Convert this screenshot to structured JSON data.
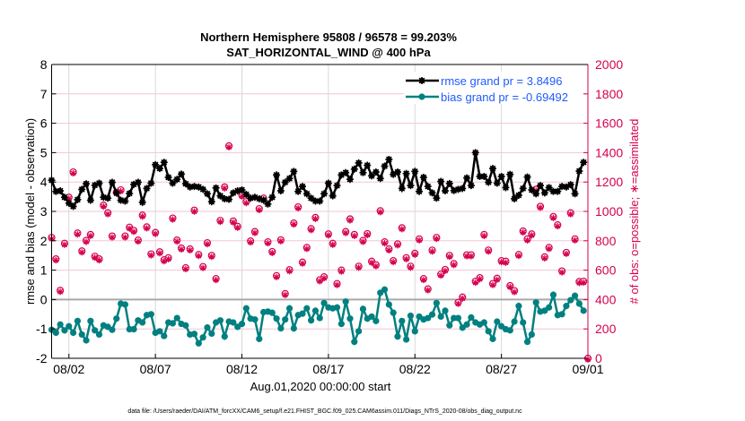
{
  "chart_data": {
    "type": "line",
    "title": [
      "Northern Hemisphere 95808 / 96578 = 99.203%",
      "SAT_HORIZONTAL_WIND @ 400 hPa"
    ],
    "xlabel": "Aug.01,2020 00:00:00 start",
    "ylabel_left": "rmse and bias (model - observation)",
    "ylabel_right": "# of obs: o=possible; ∗=assimilated",
    "footer": "data file: /Users/raeder/DAI/ATM_forcXX/CAM6_setup/f.e21.FHIST_BGC.f09_025.CAM6assim.011/Diags_NTrS_2020-08/obs_diag_output.nc",
    "ylim_left": [
      -2,
      8
    ],
    "ylim_right": [
      0,
      2000
    ],
    "xlim": [
      "08/01 00:00",
      "09/01 00:00"
    ],
    "x_tick_labels": [
      "08/02",
      "08/07",
      "08/12",
      "08/17",
      "08/22",
      "08/27",
      "09/01"
    ],
    "y_tick_labels_left": [
      "-2",
      "-1",
      "0",
      "1",
      "2",
      "3",
      "4",
      "5",
      "6",
      "7",
      "8"
    ],
    "y_tick_labels_right": [
      "0",
      "200",
      "400",
      "600",
      "800",
      "1000",
      "1200",
      "1400",
      "1600",
      "1800",
      "2000"
    ],
    "grid": true,
    "legend_placement": "top-right",
    "colors": {
      "rmse": "#000000",
      "bias": "#008080",
      "obs": "#d6004f",
      "legend_text": "#1f5bff",
      "zero_line": "#a9a9a9",
      "hgrid": "#f3c6d6",
      "vgrid": "#d8d8d8"
    },
    "x": [
      "08/01 00:00",
      "08/01 06:00",
      "08/01 12:00",
      "08/01 18:00",
      "08/02 00:00",
      "08/02 06:00",
      "08/02 12:00",
      "08/02 18:00",
      "08/03 00:00",
      "08/03 06:00",
      "08/03 12:00",
      "08/03 18:00",
      "08/04 00:00",
      "08/04 06:00",
      "08/04 12:00",
      "08/04 18:00",
      "08/05 00:00",
      "08/05 06:00",
      "08/05 12:00",
      "08/05 18:00",
      "08/06 00:00",
      "08/06 06:00",
      "08/06 12:00",
      "08/06 18:00",
      "08/07 00:00",
      "08/07 06:00",
      "08/07 12:00",
      "08/07 18:00",
      "08/08 00:00",
      "08/08 06:00",
      "08/08 12:00",
      "08/08 18:00",
      "08/09 00:00",
      "08/09 06:00",
      "08/09 12:00",
      "08/09 18:00",
      "08/10 00:00",
      "08/10 06:00",
      "08/10 12:00",
      "08/10 18:00",
      "08/11 00:00",
      "08/11 06:00",
      "08/11 12:00",
      "08/11 18:00",
      "08/12 00:00",
      "08/12 06:00",
      "08/12 12:00",
      "08/12 18:00",
      "08/13 00:00",
      "08/13 06:00",
      "08/13 12:00",
      "08/13 18:00",
      "08/14 00:00",
      "08/14 06:00",
      "08/14 12:00",
      "08/14 18:00",
      "08/15 00:00",
      "08/15 06:00",
      "08/15 12:00",
      "08/15 18:00",
      "08/16 00:00",
      "08/16 06:00",
      "08/16 12:00",
      "08/16 18:00",
      "08/17 00:00",
      "08/17 06:00",
      "08/17 12:00",
      "08/17 18:00",
      "08/18 00:00",
      "08/18 06:00",
      "08/18 12:00",
      "08/18 18:00",
      "08/19 00:00",
      "08/19 06:00",
      "08/19 12:00",
      "08/19 18:00",
      "08/20 00:00",
      "08/20 06:00",
      "08/20 12:00",
      "08/20 18:00",
      "08/21 00:00",
      "08/21 06:00",
      "08/21 12:00",
      "08/21 18:00",
      "08/22 00:00",
      "08/22 06:00",
      "08/22 12:00",
      "08/22 18:00",
      "08/23 00:00",
      "08/23 06:00",
      "08/23 12:00",
      "08/23 18:00",
      "08/24 00:00",
      "08/24 06:00",
      "08/24 12:00",
      "08/24 18:00",
      "08/25 00:00",
      "08/25 06:00",
      "08/25 12:00",
      "08/25 18:00",
      "08/26 00:00",
      "08/26 06:00",
      "08/26 12:00",
      "08/26 18:00",
      "08/27 00:00",
      "08/27 06:00",
      "08/27 12:00",
      "08/27 18:00",
      "08/28 00:00",
      "08/28 06:00",
      "08/28 12:00",
      "08/28 18:00",
      "08/29 00:00",
      "08/29 06:00",
      "08/29 12:00",
      "08/29 18:00",
      "08/30 00:00",
      "08/30 06:00",
      "08/30 12:00",
      "08/30 18:00",
      "08/31 00:00",
      "08/31 06:00",
      "08/31 12:00",
      "08/31 18:00",
      "09/01 00:00"
    ],
    "series": [
      {
        "name": "rmse grand pr = 3.8496",
        "axis": "left",
        "marker": "filled-asterisk",
        "values": [
          4.06,
          3.68,
          3.7,
          3.48,
          3.28,
          3.17,
          3.4,
          3.75,
          3.94,
          3.38,
          3.89,
          3.96,
          3.48,
          3.45,
          3.99,
          3.63,
          3.38,
          3.35,
          3.61,
          3.92,
          3.99,
          3.31,
          3.78,
          3.96,
          4.59,
          4.46,
          4.67,
          4.16,
          3.96,
          4.09,
          4.27,
          3.94,
          3.83,
          3.85,
          3.83,
          3.75,
          3.6,
          3.33,
          3.8,
          3.53,
          3.43,
          3.41,
          3.63,
          3.7,
          3.73,
          3.58,
          3.45,
          3.48,
          3.43,
          3.38,
          3.25,
          3.48,
          4.24,
          3.7,
          3.99,
          4.12,
          4.36,
          3.68,
          3.85,
          3.6,
          3.45,
          3.35,
          3.35,
          3.6,
          3.96,
          3.53,
          3.88,
          4.24,
          4.32,
          4.09,
          4.44,
          4.65,
          4.32,
          4.57,
          4.21,
          4.34,
          4.12,
          4.54,
          4.77,
          4.26,
          4.34,
          3.78,
          4.29,
          3.88,
          4.36,
          3.68,
          4.16,
          3.85,
          3.63,
          3.45,
          4.02,
          3.7,
          3.95,
          3.71,
          3.75,
          3.78,
          4.14,
          3.88,
          5.0,
          4.19,
          4.19,
          3.99,
          4.46,
          3.96,
          4.19,
          3.81,
          4.26,
          3.43,
          3.55,
          3.78,
          4.17,
          3.73,
          3.6,
          3.88,
          3.63,
          3.81,
          3.68,
          3.68,
          3.85,
          3.83,
          3.91,
          3.6,
          4.37,
          4.67,
          null
        ]
      },
      {
        "name": "bias grand pr = -0.69492",
        "axis": "left",
        "marker": "filled-circle",
        "values": [
          -1.03,
          -1.13,
          -0.85,
          -1.05,
          -0.91,
          -1.13,
          -0.73,
          -1.19,
          -1.39,
          -0.73,
          -1.05,
          -1.19,
          -0.88,
          -0.93,
          -1.03,
          -0.65,
          -0.14,
          -0.17,
          -1.01,
          -1.01,
          -0.71,
          -0.78,
          -0.53,
          -0.5,
          -1.13,
          -1.08,
          -1.24,
          -0.78,
          -0.81,
          -0.63,
          -0.83,
          -0.88,
          -1.19,
          -1.17,
          -1.49,
          -1.29,
          -0.95,
          -1.16,
          -0.78,
          -0.71,
          -1.26,
          -0.75,
          -0.78,
          -0.93,
          -0.83,
          -0.3,
          -0.65,
          -0.68,
          -1.34,
          -0.43,
          -0.41,
          -0.45,
          -0.65,
          -0.98,
          -0.68,
          -0.3,
          -0.98,
          -0.53,
          -0.48,
          -0.3,
          -0.71,
          -0.38,
          -0.63,
          -0.12,
          -0.27,
          -0.3,
          -0.27,
          -0.83,
          -0.07,
          -0.65,
          -1.44,
          -1.08,
          -0.32,
          -0.65,
          -0.58,
          -0.73,
          0.23,
          0.34,
          -0.17,
          -0.45,
          -1.26,
          -0.73,
          -1.36,
          -0.55,
          -1.08,
          -0.58,
          -0.68,
          -0.63,
          -0.51,
          -0.12,
          -0.58,
          -0.38,
          -0.88,
          -0.63,
          -0.63,
          -0.96,
          -0.85,
          -0.61,
          -0.78,
          -0.85,
          -0.78,
          -1.08,
          -1.34,
          -0.75,
          -0.91,
          -1.01,
          -1.05,
          -0.75,
          -0.22,
          -0.78,
          -1.44,
          -1.19,
          -0.1,
          -0.41,
          -0.38,
          -0.27,
          0.16,
          -0.53,
          -0.5,
          -0.22,
          -0.02,
          0.13,
          -0.14,
          -0.38,
          null
        ]
      },
      {
        "axis": "right",
        "marker": "open-circle",
        "label_ref": "o=possible",
        "values": [
          822,
          676,
          462,
          782,
          1096,
          1268,
          852,
          730,
          802,
          842,
          694,
          676,
          1042,
          990,
          832,
          1130,
          1146,
          832,
          892,
          870,
          804,
          974,
          894,
          710,
          856,
          724,
          670,
          684,
          954,
          804,
          750,
          616,
          744,
          1008,
          706,
          624,
          786,
          700,
          542,
          938,
          1166,
          1446,
          934,
          898,
          1110,
          1066,
          798,
          862,
          1018,
          1090,
          792,
          726,
          562,
          806,
          440,
          602,
          920,
          1030,
          654,
          754,
          882,
          958,
          534,
          554,
          846,
          782,
          508,
          600,
          862,
          948,
          842,
          626,
          802,
          848,
          660,
          636,
          1004,
          792,
          744,
          664,
          778,
          888,
          684,
          626,
          714,
          812,
          542,
          472,
          736,
          822,
          572,
          604,
          700,
          644,
          380,
          416,
          704,
          704,
          524,
          548,
          842,
          736,
          508,
          544,
          664,
          660,
          494,
          460,
          706,
          866,
          812,
          846,
          1150,
          1034,
          690,
          754,
          964,
          908,
          594,
          720,
          990,
          812,
          522,
          524,
          0
        ]
      },
      {
        "axis": "right",
        "marker": "asterisk",
        "label_ref": "∗=assimilated",
        "values": [
          822,
          676,
          462,
          782,
          1096,
          1268,
          852,
          730,
          802,
          842,
          694,
          676,
          1042,
          990,
          832,
          1130,
          1146,
          832,
          892,
          870,
          804,
          974,
          894,
          710,
          856,
          724,
          670,
          684,
          954,
          804,
          750,
          616,
          744,
          1008,
          706,
          624,
          786,
          700,
          542,
          938,
          1166,
          1446,
          934,
          898,
          1110,
          1066,
          798,
          862,
          1018,
          1090,
          792,
          726,
          562,
          806,
          440,
          602,
          920,
          1030,
          654,
          754,
          882,
          958,
          534,
          554,
          846,
          782,
          508,
          600,
          862,
          948,
          842,
          626,
          802,
          848,
          660,
          636,
          1004,
          792,
          744,
          664,
          778,
          888,
          684,
          626,
          714,
          812,
          542,
          472,
          736,
          822,
          572,
          604,
          700,
          644,
          380,
          416,
          704,
          704,
          524,
          548,
          842,
          736,
          508,
          544,
          664,
          660,
          494,
          460,
          706,
          866,
          812,
          846,
          1150,
          1034,
          690,
          754,
          964,
          908,
          594,
          720,
          990,
          812,
          522,
          524,
          0
        ]
      }
    ]
  }
}
